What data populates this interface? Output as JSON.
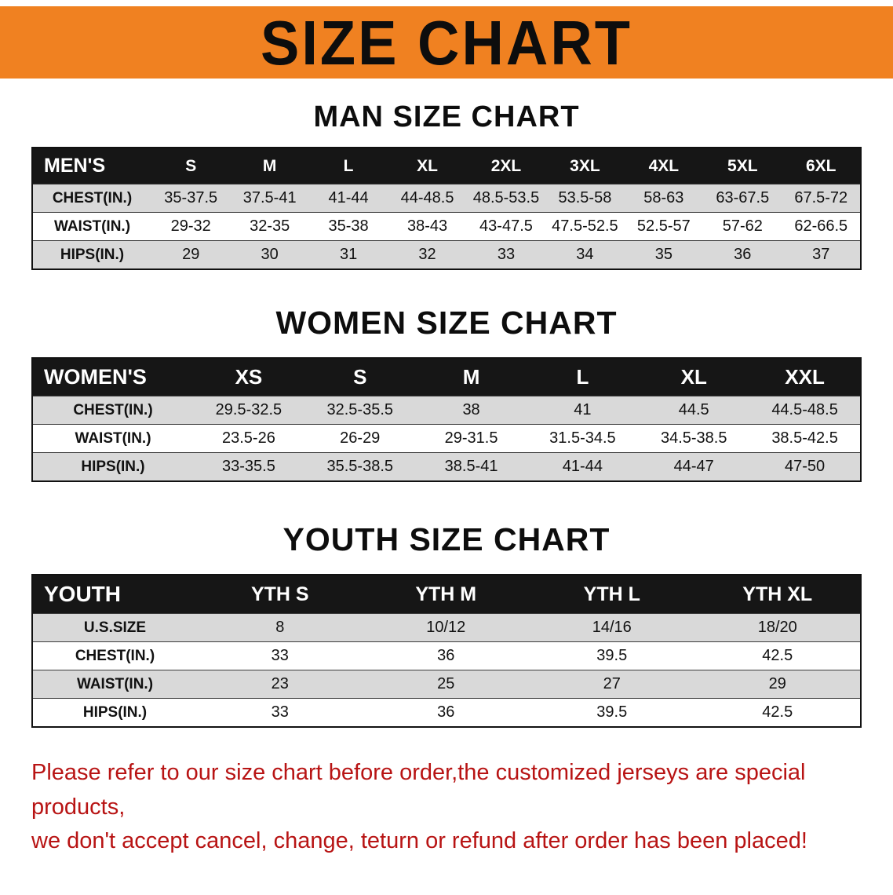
{
  "banner": {
    "title": "SIZE CHART"
  },
  "colors": {
    "banner-bg": "#f08121",
    "header-bg": "#161616",
    "stripe": "#d9d9d9",
    "disclaimer": "#b81414"
  },
  "men": {
    "heading": "MAN SIZE CHART",
    "header": [
      "MEN'S",
      "S",
      "M",
      "L",
      "XL",
      "2XL",
      "3XL",
      "4XL",
      "5XL",
      "6XL"
    ],
    "rows": [
      [
        "CHEST(IN.)",
        "35-37.5",
        "37.5-41",
        "41-44",
        "44-48.5",
        "48.5-53.5",
        "53.5-58",
        "58-63",
        "63-67.5",
        "67.5-72"
      ],
      [
        "WAIST(IN.)",
        "29-32",
        "32-35",
        "35-38",
        "38-43",
        "43-47.5",
        "47.5-52.5",
        "52.5-57",
        "57-62",
        "62-66.5"
      ],
      [
        "HIPS(IN.)",
        "29",
        "30",
        "31",
        "32",
        "33",
        "34",
        "35",
        "36",
        "37"
      ]
    ]
  },
  "women": {
    "heading": "WOMEN SIZE CHART",
    "header": [
      "WOMEN'S",
      "XS",
      "S",
      "M",
      "L",
      "XL",
      "XXL"
    ],
    "rows": [
      [
        "CHEST(IN.)",
        "29.5-32.5",
        "32.5-35.5",
        "38",
        "41",
        "44.5",
        "44.5-48.5"
      ],
      [
        "WAIST(IN.)",
        "23.5-26",
        "26-29",
        "29-31.5",
        "31.5-34.5",
        "34.5-38.5",
        "38.5-42.5"
      ],
      [
        "HIPS(IN.)",
        "33-35.5",
        "35.5-38.5",
        "38.5-41",
        "41-44",
        "44-47",
        "47-50"
      ]
    ]
  },
  "youth": {
    "heading": "YOUTH SIZE CHART",
    "header": [
      "YOUTH",
      "YTH S",
      "YTH M",
      "YTH L",
      "YTH XL"
    ],
    "rows": [
      [
        "U.S.SIZE",
        "8",
        "10/12",
        "14/16",
        "18/20"
      ],
      [
        "CHEST(IN.)",
        "33",
        "36",
        "39.5",
        "42.5"
      ],
      [
        "WAIST(IN.)",
        "23",
        "25",
        "27",
        "29"
      ],
      [
        "HIPS(IN.)",
        "33",
        "36",
        "39.5",
        "42.5"
      ]
    ]
  },
  "disclaimer": {
    "line1": "Please refer to our size chart before order,the customized jerseys are special products,",
    "line2": "we don't accept cancel, change, teturn or refund after order has been placed!"
  }
}
